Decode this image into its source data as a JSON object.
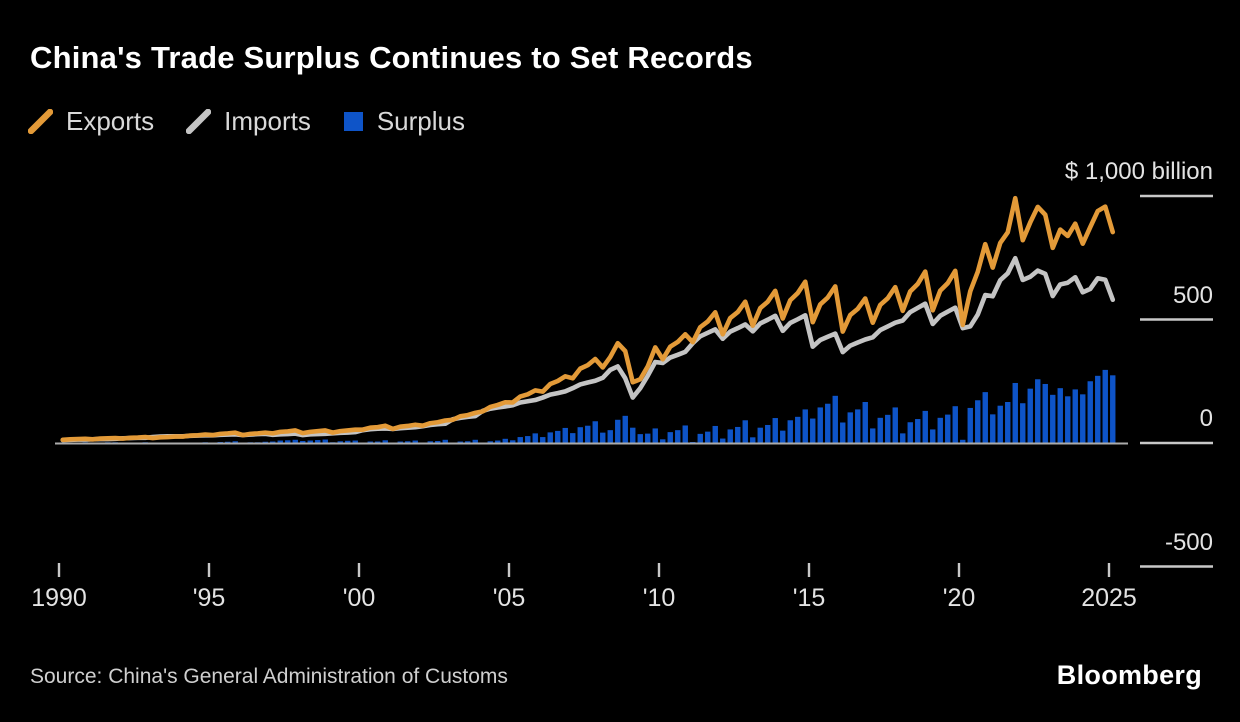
{
  "title": "China's Trade Surplus Continues to Set Records",
  "legend": {
    "items": [
      {
        "label": "Exports",
        "marker": "diagonal-line"
      },
      {
        "label": "Imports",
        "marker": "diagonal-line"
      },
      {
        "label": "Surplus",
        "marker": "square"
      }
    ]
  },
  "colors": {
    "exports": "#e39a38",
    "imports": "#c4c4c4",
    "surplus": "#0e54c8",
    "axis_tick": "#c8c8c8",
    "zero_line": "#ababab",
    "background": "#000000"
  },
  "axis": {
    "y_unit_label": "$ 1,000 billion",
    "y_ticks": [
      {
        "value": 1000,
        "label": "$ 1,000 billion"
      },
      {
        "value": 500,
        "label": "500"
      },
      {
        "value": 0,
        "label": "0"
      },
      {
        "value": -500,
        "label": "-500"
      }
    ],
    "x_ticks": [
      {
        "year": 1990,
        "label": "1990"
      },
      {
        "year": 1995,
        "label": "'95"
      },
      {
        "year": 2000,
        "label": "'00"
      },
      {
        "year": 2005,
        "label": "'05"
      },
      {
        "year": 2010,
        "label": "'10"
      },
      {
        "year": 2015,
        "label": "'15"
      },
      {
        "year": 2020,
        "label": "'20"
      },
      {
        "year": 2025,
        "label": "2025"
      }
    ]
  },
  "source_text": "Source: China's General Administration of Customs",
  "brand_text": "Bloomberg",
  "chart_data": {
    "type": "combo",
    "x_period": "quarterly",
    "x_start_year": 1990,
    "x_step_years": 0.25,
    "x_end": "2025 Q1",
    "units": "USD billions per quarter",
    "ylim": [
      -500,
      1000
    ],
    "legend_position": "top-left",
    "grid": false,
    "series": [
      {
        "name": "Exports",
        "type": "line",
        "values": [
          13,
          15,
          16,
          17,
          15,
          18,
          19,
          20,
          18,
          21,
          22,
          24,
          20,
          23,
          24,
          26,
          26,
          30,
          31,
          34,
          32,
          37,
          39,
          42,
          32,
          37,
          39,
          42,
          39,
          45,
          47,
          51,
          40,
          45,
          48,
          51,
          42,
          48,
          51,
          54,
          54,
          62,
          64,
          70,
          57,
          66,
          69,
          74,
          70,
          80,
          84,
          91,
          94,
          108,
          113,
          122,
          128,
          146,
          154,
          165,
          164,
          188,
          197,
          213,
          208,
          239,
          251,
          270,
          262,
          301,
          315,
          340,
          306,
          348,
          404,
          372,
          246,
          258,
          310,
          387,
          339,
          390,
          409,
          440,
          408,
          469,
          492,
          529,
          440,
          506,
          530,
          572,
          475,
          546,
          572,
          616,
          504,
          578,
          607,
          653,
          489,
          561,
          589,
          634,
          451,
          518,
          543,
          585,
          487,
          559,
          586,
          631,
          535,
          614,
          644,
          694,
          537,
          617,
          647,
          697,
          478,
          614,
          693,
          805,
          710,
          810,
          853,
          991,
          821,
          893,
          956,
          924,
          790,
          864,
          838,
          888,
          807,
          874,
          939,
          957,
          854
        ]
      },
      {
        "name": "Imports",
        "type": "line",
        "values": [
          12,
          13,
          14,
          14,
          15,
          16,
          16,
          17,
          19,
          20,
          21,
          21,
          24,
          26,
          27,
          27,
          27,
          29,
          30,
          31,
          31,
          33,
          34,
          35,
          32,
          34,
          36,
          37,
          33,
          35,
          36,
          38,
          32,
          35,
          36,
          37,
          39,
          41,
          42,
          44,
          52,
          56,
          58,
          59,
          57,
          60,
          62,
          64,
          68,
          73,
          76,
          78,
          96,
          102,
          106,
          109,
          130,
          139,
          144,
          148,
          153,
          164,
          169,
          174,
          184,
          196,
          202,
          209,
          222,
          237,
          245,
          252,
          264,
          296,
          310,
          262,
          184,
          222,
          272,
          328,
          324,
          346,
          357,
          369,
          404,
          432,
          446,
          460,
          422,
          451,
          465,
          480,
          452,
          484,
          499,
          515,
          454,
          486,
          501,
          517,
          390,
          417,
          430,
          443,
          368,
          394,
          407,
          419,
          428,
          457,
          472,
          487,
          496,
          530,
          547,
          564,
          482,
          515,
          532,
          548,
          465,
          472,
          520,
          599,
          594,
          659,
          687,
          748,
          660,
          673,
          698,
          685,
          595,
          642,
          649,
          671,
          610,
          624,
          667,
          661,
          580
        ]
      },
      {
        "name": "Surplus",
        "type": "bar",
        "values": [
          1,
          2,
          2,
          3,
          0,
          2,
          3,
          3,
          -1,
          1,
          1,
          3,
          -4,
          -3,
          -3,
          -1,
          -1,
          1,
          1,
          3,
          1,
          4,
          5,
          7,
          0,
          3,
          3,
          5,
          6,
          10,
          11,
          13,
          8,
          10,
          12,
          14,
          3,
          7,
          9,
          10,
          2,
          6,
          6,
          11,
          0,
          6,
          7,
          10,
          2,
          7,
          8,
          13,
          -2,
          6,
          7,
          13,
          -2,
          7,
          10,
          17,
          11,
          24,
          28,
          39,
          24,
          43,
          49,
          61,
          40,
          64,
          70,
          88,
          42,
          52,
          94,
          110,
          62,
          36,
          38,
          59,
          15,
          44,
          52,
          71,
          4,
          37,
          46,
          69,
          18,
          55,
          65,
          92,
          23,
          62,
          73,
          101,
          50,
          92,
          106,
          136,
          99,
          144,
          159,
          191,
          83,
          124,
          136,
          166,
          59,
          102,
          114,
          144,
          39,
          84,
          97,
          130,
          55,
          102,
          115,
          149,
          13,
          142,
          173,
          206,
          116,
          151,
          166,
          243,
          161,
          220,
          258,
          239,
          195,
          222,
          189,
          217,
          197,
          250,
          272,
          296,
          274
        ]
      }
    ]
  }
}
